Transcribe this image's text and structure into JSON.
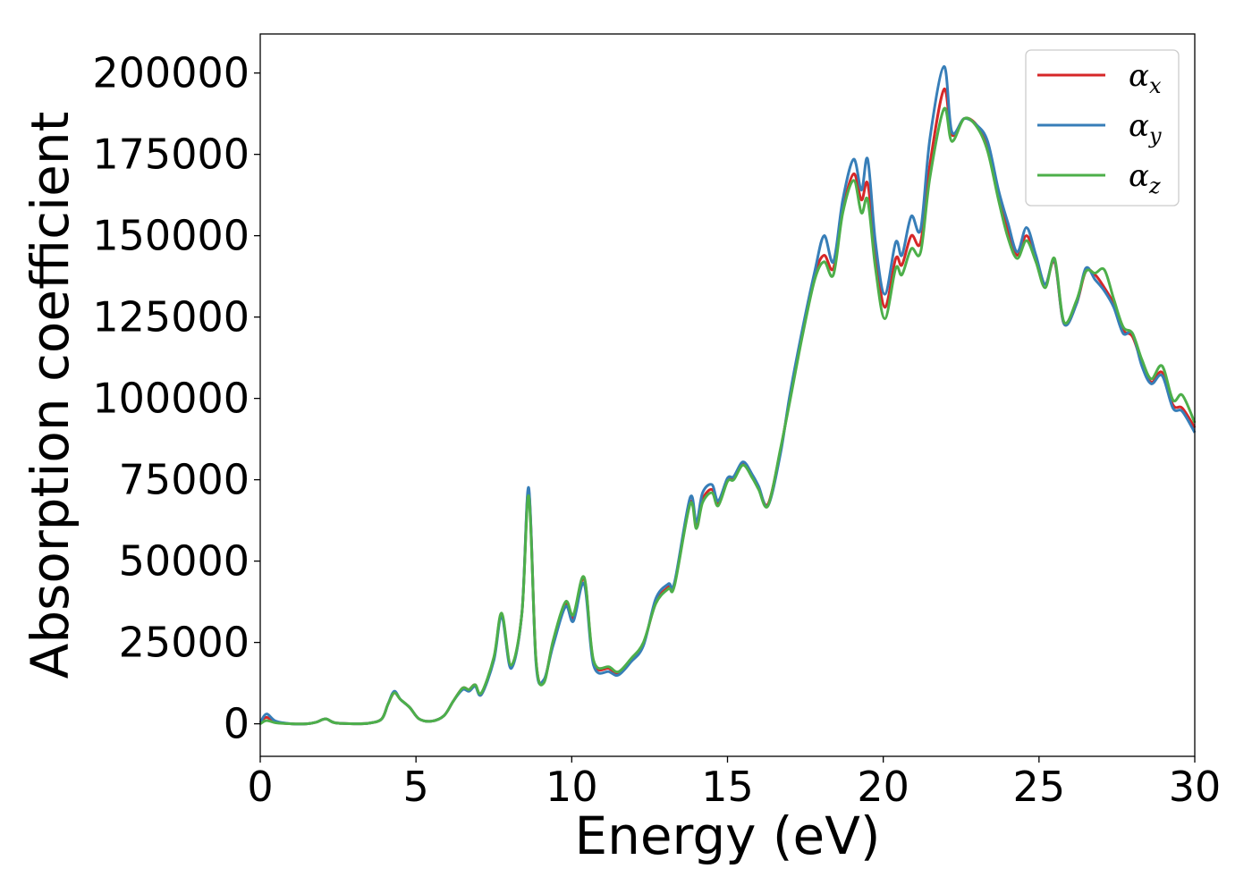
{
  "chart_data": {
    "type": "line",
    "xlabel": "Energy (eV)",
    "ylabel": "Absorption coefficient",
    "xlim": [
      0,
      30
    ],
    "ylim": [
      -10000,
      212000
    ],
    "xticks": [
      0,
      5,
      10,
      15,
      20,
      25,
      30
    ],
    "xtick_labels": [
      "0",
      "5",
      "10",
      "15",
      "20",
      "25",
      "30"
    ],
    "yticks": [
      0,
      25000,
      50000,
      75000,
      100000,
      125000,
      150000,
      175000,
      200000
    ],
    "ytick_labels": [
      "0",
      "25000",
      "50000",
      "75000",
      "100000",
      "125000",
      "150000",
      "175000",
      "200000"
    ],
    "grid": false,
    "legend_position": "top-right",
    "x": [
      0,
      0.2,
      0.5,
      1,
      1.5,
      1.8,
      2.1,
      2.4,
      3,
      3.5,
      3.9,
      4.1,
      4.3,
      4.5,
      4.8,
      5.1,
      5.5,
      5.9,
      6.2,
      6.5,
      6.7,
      6.9,
      7.1,
      7.5,
      7.75,
      8.05,
      8.4,
      8.62,
      8.85,
      9.1,
      9.4,
      9.8,
      10.05,
      10.4,
      10.7,
      11.2,
      11.5,
      11.9,
      12.3,
      12.7,
      13.1,
      13.3,
      13.8,
      14.0,
      14.2,
      14.5,
      14.7,
      15.0,
      15.2,
      15.5,
      15.8,
      16.0,
      16.3,
      16.7,
      17.0,
      17.4,
      17.8,
      18.1,
      18.4,
      18.7,
      19.05,
      19.3,
      19.5,
      19.75,
      20.05,
      20.4,
      20.6,
      20.9,
      21.2,
      21.5,
      21.95,
      22.2,
      22.6,
      23.0,
      23.35,
      23.7,
      24.0,
      24.3,
      24.6,
      24.9,
      25.2,
      25.5,
      25.8,
      26.2,
      26.5,
      26.8,
      27.1,
      27.4,
      27.7,
      28.0,
      28.3,
      28.6,
      28.95,
      29.3,
      29.6,
      30.0
    ],
    "series": [
      {
        "name": "α_x",
        "color": "#d62728",
        "values": [
          500,
          2000,
          500,
          0,
          0,
          500,
          1500,
          300,
          0,
          200,
          1500,
          6000,
          9500,
          7500,
          5000,
          1500,
          800,
          2500,
          7000,
          11000,
          10500,
          12000,
          9000,
          20000,
          33500,
          17500,
          34000,
          71500,
          20000,
          13000,
          25000,
          37000,
          32500,
          44500,
          19000,
          17000,
          15500,
          19500,
          24500,
          37500,
          42000,
          43000,
          68000,
          61000,
          69000,
          72000,
          67500,
          75000,
          75500,
          80000,
          76000,
          72500,
          67500,
          84000,
          100000,
          120000,
          138000,
          144000,
          140000,
          158000,
          169000,
          161000,
          166000,
          145000,
          128000,
          143000,
          141000,
          150000,
          148000,
          172000,
          195000,
          181000,
          186000,
          184000,
          177000,
          163000,
          152000,
          144000,
          150000,
          143000,
          135000,
          142000,
          123000,
          129000,
          139000,
          138000,
          134000,
          129000,
          121000,
          119000,
          111000,
          105000,
          108000,
          98000,
          97000,
          91000
        ]
      },
      {
        "name": "α_y",
        "color": "#377eb8",
        "values": [
          300,
          3000,
          800,
          0,
          0,
          500,
          1500,
          300,
          0,
          200,
          1500,
          6000,
          10000,
          7500,
          5000,
          1500,
          800,
          2500,
          7000,
          10500,
          10000,
          11500,
          9000,
          19500,
          33000,
          17000,
          34000,
          72500,
          19000,
          13500,
          24000,
          36000,
          31500,
          43000,
          18000,
          16000,
          15000,
          19000,
          24000,
          38500,
          43000,
          43500,
          69500,
          62000,
          71000,
          73500,
          68500,
          75500,
          76000,
          80500,
          76500,
          73000,
          67000,
          83000,
          101000,
          121000,
          139000,
          150000,
          142000,
          161000,
          173500,
          164000,
          173500,
          148000,
          132000,
          148000,
          144000,
          156000,
          152000,
          180000,
          202000,
          182000,
          186000,
          184000,
          179000,
          164000,
          154000,
          145000,
          152500,
          144000,
          135000,
          142500,
          123000,
          129000,
          140000,
          136500,
          133000,
          128000,
          120000,
          120000,
          110000,
          104500,
          107000,
          97000,
          96000,
          89500
        ]
      },
      {
        "name": "α_z",
        "color": "#4daf4a",
        "values": [
          0,
          1000,
          300,
          0,
          0,
          500,
          1500,
          300,
          0,
          200,
          1500,
          6000,
          9500,
          7500,
          5000,
          1500,
          800,
          2500,
          7000,
          11000,
          10500,
          12000,
          9500,
          20500,
          34000,
          18000,
          34000,
          70000,
          20000,
          12500,
          25500,
          37500,
          33500,
          45000,
          19500,
          17500,
          16000,
          20000,
          25000,
          37000,
          41500,
          42500,
          67500,
          60000,
          68000,
          71000,
          67000,
          74500,
          75000,
          79500,
          75500,
          72000,
          67000,
          84500,
          99000,
          119000,
          136500,
          142000,
          138000,
          157000,
          167000,
          157000,
          161000,
          140000,
          124500,
          140000,
          138000,
          146000,
          145000,
          168000,
          189000,
          179000,
          186000,
          183500,
          176000,
          161000,
          149500,
          143000,
          148500,
          142000,
          134000,
          143000,
          123500,
          130000,
          139000,
          138500,
          139500,
          130500,
          122000,
          120000,
          112000,
          106000,
          110000,
          99500,
          101000,
          92500
        ]
      }
    ],
    "legend": [
      {
        "symbol": "α",
        "subscript": "x",
        "color": "#d62728"
      },
      {
        "symbol": "α",
        "subscript": "y",
        "color": "#377eb8"
      },
      {
        "symbol": "α",
        "subscript": "z",
        "color": "#4daf4a"
      }
    ]
  }
}
